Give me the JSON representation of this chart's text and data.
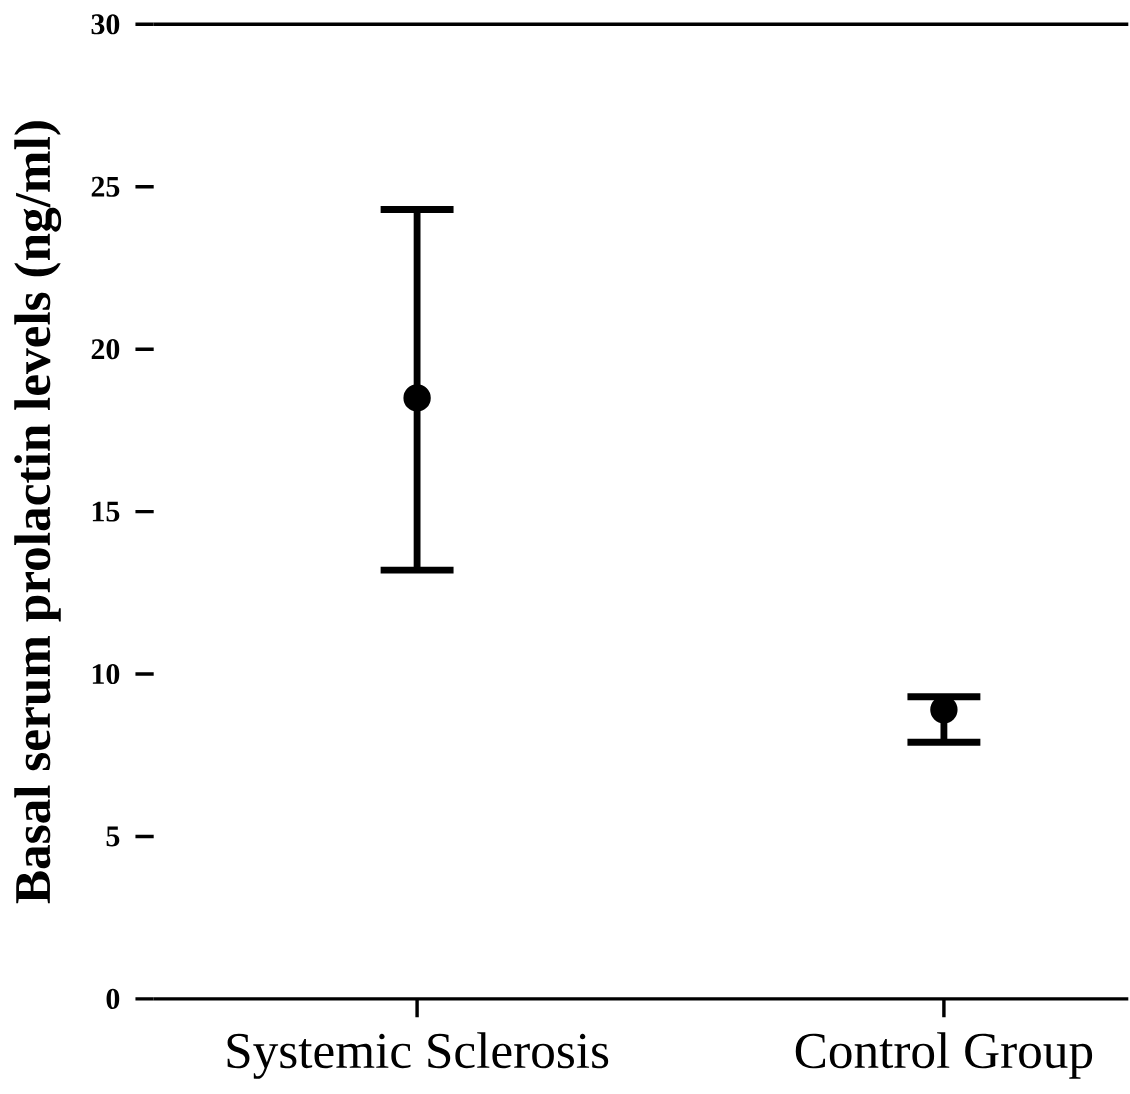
{
  "chart_data": {
    "type": "scatter",
    "ylabel": "Basal serum prolactin levels (ng/ml)",
    "categories": [
      "Systemic Sclerosis",
      "Control Group"
    ],
    "values": [
      18.5,
      8.9
    ],
    "errors": [
      [
        13.2,
        24.3
      ],
      [
        7.9,
        9.3
      ]
    ],
    "color": "#000000",
    "grid": false,
    "ylim": [
      0,
      30
    ],
    "yticks": [
      0,
      5,
      10,
      15,
      20,
      25,
      30
    ]
  }
}
